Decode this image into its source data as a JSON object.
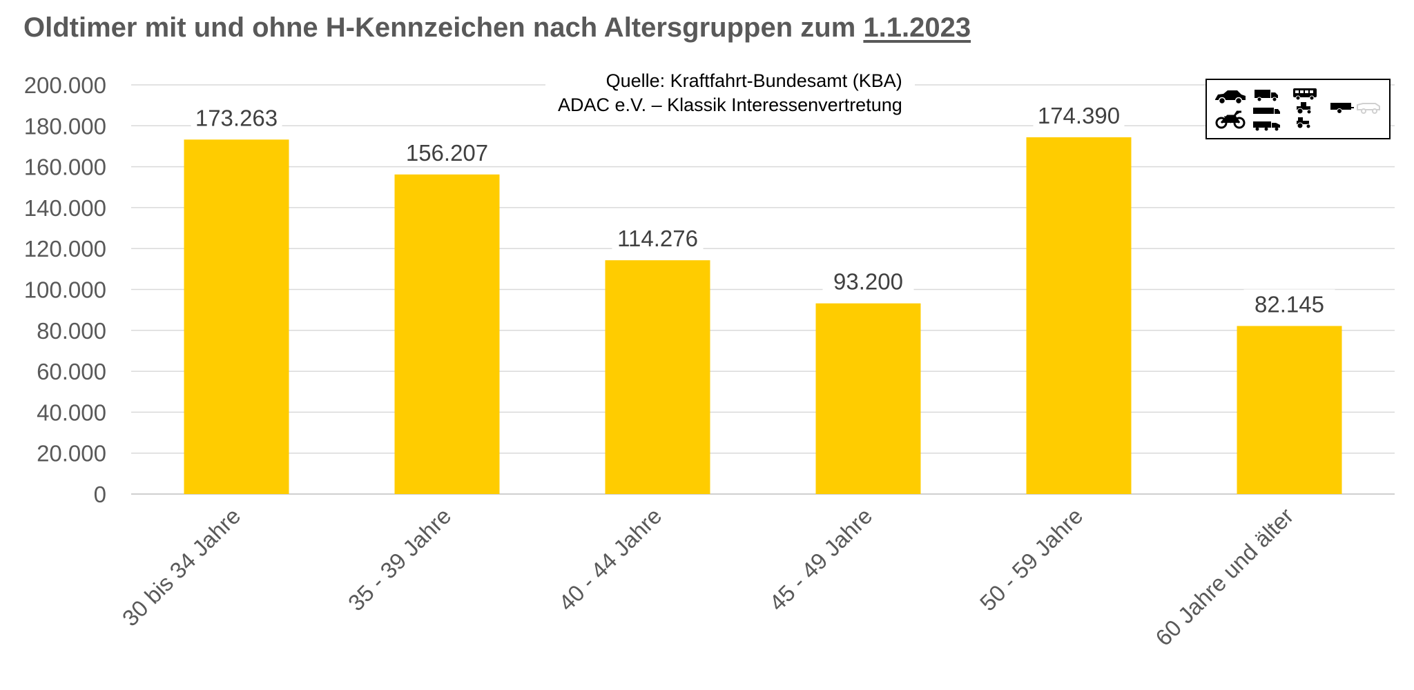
{
  "title": {
    "main": "Oldtimer mit und ohne H-Kennzeichen nach Altersgruppen zum ",
    "date": "1.1.2023"
  },
  "source": {
    "line1": "Quelle: Kraftfahrt-Bundesamt (KBA)",
    "line2": "ADAC e.V. – Klassik Interessenvertretung"
  },
  "legend_icons": [
    "car-icon",
    "truck-icon",
    "bus-icon",
    "trailer-icon",
    "motorcycle-icon",
    "semi-truck-icon",
    "tractor-icon",
    "caravan-icon",
    "small-tractor-icon"
  ],
  "colors": {
    "bar": "#FFCC00",
    "grid": "#D9D9D9",
    "axis_text": "#595959",
    "label_text": "#404040"
  },
  "chart_data": {
    "type": "bar",
    "categories": [
      "30 bis 34 Jahre",
      "35 - 39 Jahre",
      "40 - 44 Jahre",
      "45 - 49 Jahre",
      "50 - 59 Jahre",
      "60 Jahre und älter"
    ],
    "values": [
      173263,
      156207,
      114276,
      93200,
      174390,
      82145
    ],
    "data_labels": [
      "173.263",
      "156.207",
      "114.276",
      "93.200",
      "174.390",
      "82.145"
    ],
    "ylim": [
      0,
      200000
    ],
    "yticks": [
      0,
      20000,
      40000,
      60000,
      80000,
      100000,
      120000,
      140000,
      160000,
      180000,
      200000
    ],
    "ytick_labels": [
      "0",
      "20.000",
      "40.000",
      "60.000",
      "80.000",
      "100.000",
      "120.000",
      "140.000",
      "160.000",
      "180.000",
      "200.000"
    ],
    "grid": true,
    "legend": "none"
  }
}
